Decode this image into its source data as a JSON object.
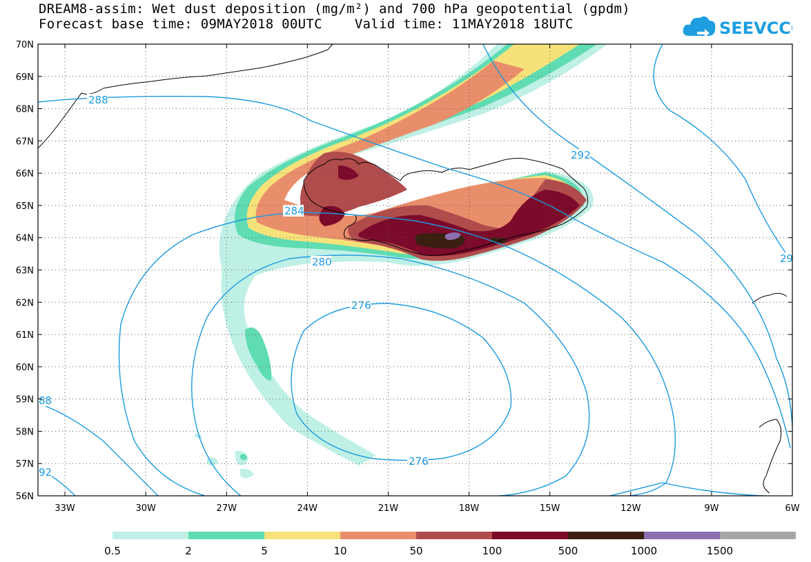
{
  "title": {
    "line1": "DREAM8-assim: Wet dust deposition (mg/m²) and 700 hPa geopotential (gpdm)",
    "line2": "Forecast base time: 09MAY2018 00UTC    Valid time: 11MAY2018 18UTC"
  },
  "logo": {
    "text": "SEEVCCC",
    "icon": "cloud-arrow-icon",
    "color": "#1e9ee0"
  },
  "axes": {
    "lat_labels": [
      "70N",
      "69N",
      "68N",
      "67N",
      "66N",
      "65N",
      "64N",
      "63N",
      "62N",
      "61N",
      "60N",
      "59N",
      "58N",
      "57N",
      "56N"
    ],
    "lon_labels": [
      "33W",
      "30W",
      "27W",
      "24W",
      "21W",
      "18W",
      "15W",
      "12W",
      "9W",
      "6W"
    ]
  },
  "contours": {
    "color": "#1a9ae0",
    "labels": [
      "288",
      "284",
      "280",
      "276",
      "276",
      "292",
      "29",
      "88",
      "92"
    ]
  },
  "legend": {
    "colors": [
      "#bff0e6",
      "#5fdcb1",
      "#f7e27a",
      "#e98e6b",
      "#b14c4c",
      "#7c0a2a",
      "#3a1f10",
      "#8c6fb0",
      "#a6a6a6"
    ],
    "labels": [
      "0.5",
      "2",
      "5",
      "10",
      "50",
      "100",
      "500",
      "1000",
      "1500"
    ]
  },
  "chart_data": {
    "type": "heatmap",
    "title": "DREAM8-assim: Wet dust deposition (mg/m²) and 700 hPa geopotential (gpdm)",
    "lon_range": [
      -34.0,
      -6.0
    ],
    "lat_range": [
      56.0,
      70.0
    ],
    "shading_levels": [
      0.5,
      2,
      5,
      10,
      50,
      100,
      500,
      1000,
      1500
    ],
    "contour_levels_gpdm": [
      276,
      280,
      284,
      288,
      292
    ],
    "grid": true
  }
}
